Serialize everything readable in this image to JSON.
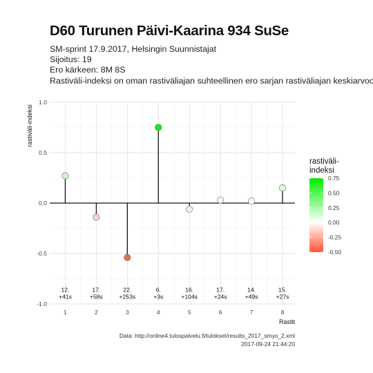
{
  "title": "D60 Turunen Päivi-Kaarina 934 SuSe",
  "subtitle_lines": [
    "SM-sprint 17.9.2017, Helsingin Suunnistajat",
    "Sijoitus: 19",
    "Ero kärkeen: 8M 8S",
    "Rastiväli-indeksi on oman rastiväliajan suhteellinen ero sarjan rastiväliajan keskiarvoon"
  ],
  "caption": {
    "source": "Data: http://online4.tulospalvelu.fi/tulokset/results_2017_smyo_2.xml",
    "timestamp": "2017-09-24 21:44:20"
  },
  "chart_data": {
    "type": "lollipop",
    "xlabel": "Rastit",
    "ylabel": "rastiväli-indeksi",
    "xlim": [
      0.5,
      8.4
    ],
    "ylim": [
      -1.0,
      1.0
    ],
    "x_ticks": [
      1,
      2,
      3,
      4,
      5,
      6,
      7,
      8
    ],
    "y_ticks": [
      -1.0,
      -0.5,
      0.0,
      0.5,
      1.0
    ],
    "y_tick_labels": [
      "-1.0",
      "-0.5",
      "0.0",
      "0.5",
      "1.0"
    ],
    "grid": true,
    "points": [
      {
        "x": 1,
        "y": 0.27,
        "color": "#ccf5c8",
        "label_rank": "12.",
        "label_diff": "+41s"
      },
      {
        "x": 2,
        "y": -0.14,
        "color": "#fad4cc",
        "label_rank": "17.",
        "label_diff": "+58s"
      },
      {
        "x": 3,
        "y": -0.54,
        "color": "#ef6b50",
        "label_rank": "22.",
        "label_diff": "+253s"
      },
      {
        "x": 4,
        "y": 0.75,
        "color": "#11ee11",
        "label_rank": "6.",
        "label_diff": "+3s"
      },
      {
        "x": 5,
        "y": -0.06,
        "color": "#fbebe8",
        "label_rank": "16.",
        "label_diff": "+104s"
      },
      {
        "x": 6,
        "y": 0.03,
        "color": "#f7fcf6",
        "label_rank": "17.",
        "label_diff": "+24s"
      },
      {
        "x": 7,
        "y": 0.02,
        "color": "#f9fdf8",
        "label_rank": "14.",
        "label_diff": "+49s"
      },
      {
        "x": 8,
        "y": 0.15,
        "color": "#e0f8dc",
        "label_rank": "15.",
        "label_diff": "+27s"
      }
    ],
    "label_y": -0.9,
    "legend": {
      "title": "rastiväli-indeksi",
      "title_lines": [
        "rastiväli-",
        "indeksi"
      ],
      "position": "right",
      "min": -0.5,
      "max": 0.75,
      "ticks": [
        0.75,
        0.5,
        0.25,
        0.0,
        -0.25,
        -0.5
      ],
      "tick_labels": [
        "0.75",
        "0.50",
        "0.25",
        "0.00",
        "-0.25",
        "-0.50"
      ],
      "low_color": "#ff5533",
      "mid_color": "#ffffff",
      "high_color": "#00ee00"
    }
  }
}
